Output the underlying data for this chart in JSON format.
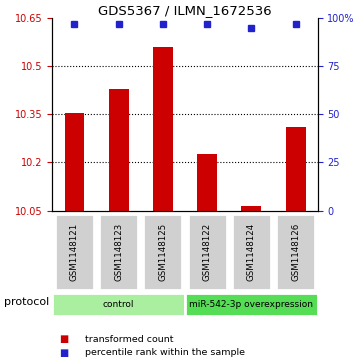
{
  "title": "GDS5367 / ILMN_1672536",
  "samples": [
    "GSM1148121",
    "GSM1148123",
    "GSM1148125",
    "GSM1148122",
    "GSM1148124",
    "GSM1148126"
  ],
  "red_values": [
    10.355,
    10.43,
    10.56,
    10.225,
    10.065,
    10.31
  ],
  "blue_values": [
    97,
    97,
    97,
    97,
    95,
    97
  ],
  "ylim_left": [
    10.05,
    10.65
  ],
  "ylim_right": [
    0,
    100
  ],
  "yticks_left": [
    10.05,
    10.2,
    10.35,
    10.5,
    10.65
  ],
  "ytick_labels_left": [
    "10.05",
    "10.2",
    "10.35",
    "10.5",
    "10.65"
  ],
  "yticks_right": [
    0,
    25,
    50,
    75,
    100
  ],
  "ytick_labels_right": [
    "0",
    "25",
    "50",
    "75",
    "100%"
  ],
  "hlines": [
    10.2,
    10.35,
    10.5
  ],
  "bar_color": "#cc0000",
  "dot_color": "#2222cc",
  "bar_bottom": 10.05,
  "protocol_groups": [
    {
      "label": "control",
      "indices": [
        0,
        1,
        2
      ],
      "color": "#aaeea0"
    },
    {
      "label": "miR-542-3p overexpression",
      "indices": [
        3,
        4,
        5
      ],
      "color": "#55dd55"
    }
  ],
  "legend_items": [
    {
      "color": "#cc0000",
      "label": "transformed count"
    },
    {
      "color": "#2222cc",
      "label": "percentile rank within the sample"
    }
  ],
  "protocol_label": "protocol"
}
